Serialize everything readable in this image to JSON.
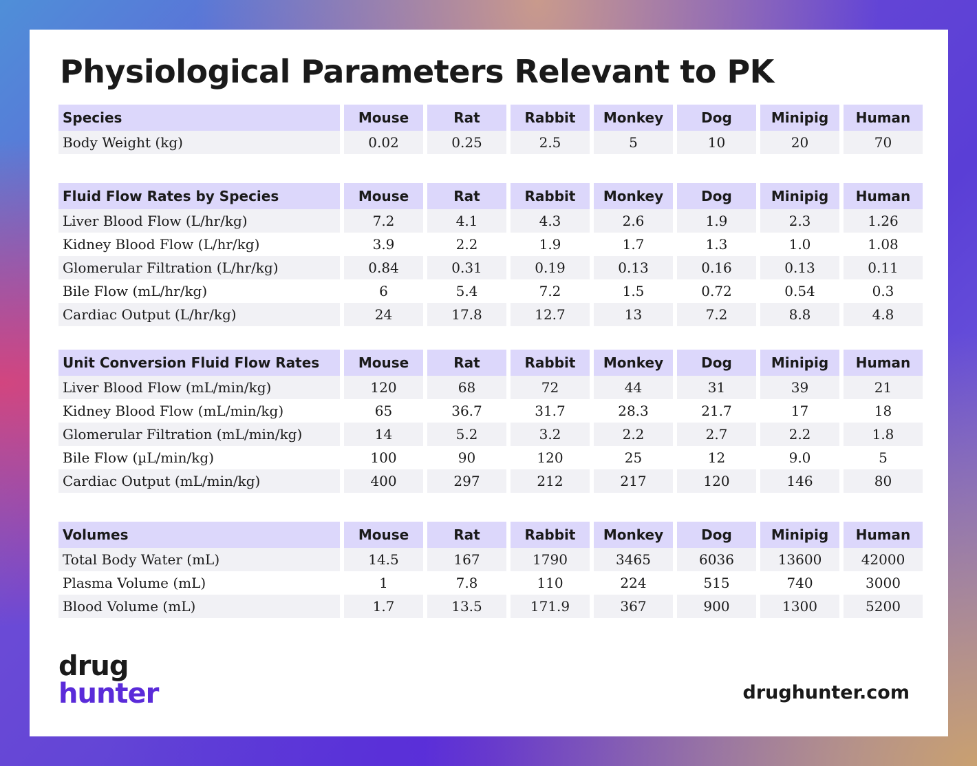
{
  "title": "Physiological Parameters Relevant to PK",
  "species": [
    "Mouse",
    "Rat",
    "Rabbit",
    "Monkey",
    "Dog",
    "Minipig",
    "Human"
  ],
  "sections": [
    {
      "heading": "Species",
      "rows": [
        {
          "label": "Body Weight (kg)",
          "values": [
            "0.02",
            "0.25",
            "2.5",
            "5",
            "10",
            "20",
            "70"
          ]
        }
      ]
    },
    {
      "heading": "Fluid Flow Rates by Species",
      "rows": [
        {
          "label": "Liver Blood Flow (L/hr/kg)",
          "values": [
            "7.2",
            "4.1",
            "4.3",
            "2.6",
            "1.9",
            "2.3",
            "1.26"
          ]
        },
        {
          "label": "Kidney Blood Flow (L/hr/kg)",
          "values": [
            "3.9",
            "2.2",
            "1.9",
            "1.7",
            "1.3",
            "1.0",
            "1.08"
          ]
        },
        {
          "label": "Glomerular Filtration (L/hr/kg)",
          "values": [
            "0.84",
            "0.31",
            "0.19",
            "0.13",
            "0.16",
            "0.13",
            "0.11"
          ]
        },
        {
          "label": "Bile Flow (mL/hr/kg)",
          "values": [
            "6",
            "5.4",
            "7.2",
            "1.5",
            "0.72",
            "0.54",
            "0.3"
          ]
        },
        {
          "label": "Cardiac Output (L/hr/kg)",
          "values": [
            "24",
            "17.8",
            "12.7",
            "13",
            "7.2",
            "8.8",
            "4.8"
          ]
        }
      ]
    },
    {
      "heading": "Unit Conversion Fluid Flow Rates",
      "rows": [
        {
          "label": "Liver Blood Flow (mL/min/kg)",
          "values": [
            "120",
            "68",
            "72",
            "44",
            "31",
            "39",
            "21"
          ]
        },
        {
          "label": "Kidney Blood Flow (mL/min/kg)",
          "values": [
            "65",
            "36.7",
            "31.7",
            "28.3",
            "21.7",
            "17",
            "18"
          ]
        },
        {
          "label": "Glomerular Filtration (mL/min/kg)",
          "values": [
            "14",
            "5.2",
            "3.2",
            "2.2",
            "2.7",
            "2.2",
            "1.8"
          ]
        },
        {
          "label": "Bile Flow (µL/min/kg)",
          "values": [
            "100",
            "90",
            "120",
            "25",
            "12",
            "9.0",
            "5"
          ]
        },
        {
          "label": "Cardiac Output (mL/min/kg)",
          "values": [
            "400",
            "297",
            "212",
            "217",
            "120",
            "146",
            "80"
          ]
        }
      ]
    },
    {
      "heading": "Volumes",
      "rows": [
        {
          "label": "Total Body Water (mL)",
          "values": [
            "14.5",
            "167",
            "1790",
            "3465",
            "6036",
            "13600",
            "42000"
          ]
        },
        {
          "label": "Plasma Volume (mL)",
          "values": [
            "1",
            "7.8",
            "110",
            "224",
            "515",
            "740",
            "3000"
          ]
        },
        {
          "label": "Blood Volume (mL)",
          "values": [
            "1.7",
            "13.5",
            "171.9",
            "367",
            "900",
            "1300",
            "5200"
          ]
        }
      ]
    }
  ],
  "logo": {
    "line1": "drug",
    "line2": "hunter"
  },
  "website": "drughunter.com",
  "colors": {
    "header_fill": "#dcd7fb",
    "stripe_fill": "#f1f1f5",
    "brand_purple": "#5a2bd9"
  }
}
